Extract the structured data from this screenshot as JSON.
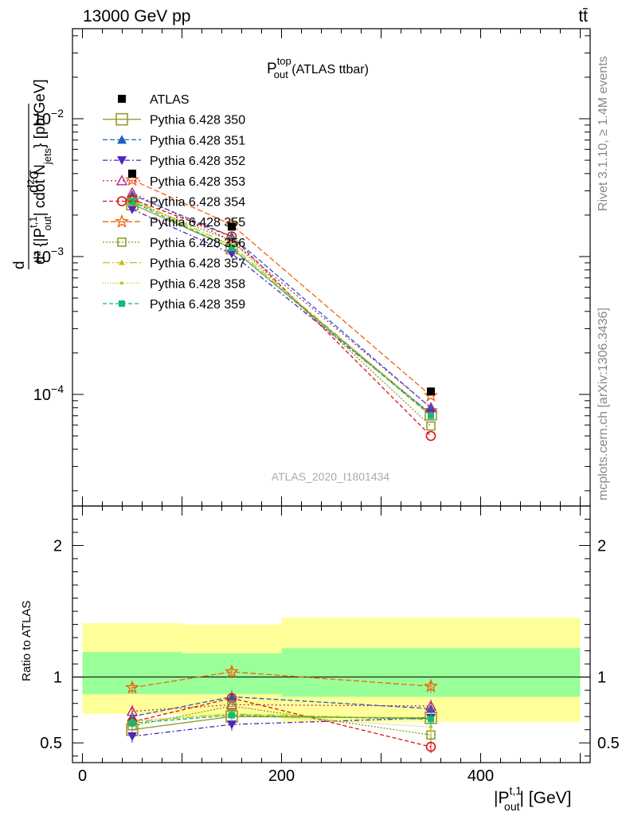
{
  "header": {
    "left": "13000 GeV pp",
    "right": "tt̄"
  },
  "title": {
    "main": "P",
    "sup": "top",
    "sub": "out",
    "rest": " (ATLAS ttbar)"
  },
  "side_labels": {
    "rivet": "Rivet 3.1.10, ≥ 1.4M events",
    "mcplots": "mcplots.cern.ch [arXiv:1306.3436]"
  },
  "watermark": "ATLAS_2020_I1801434",
  "axes": {
    "ylabel_top": "dσ / d²[|P_out^{t,1}| cdot N_jets] [pb/GeV]",
    "ylabel_ratio": "Ratio to ATLAS",
    "xlabel": "|P_out^{t,1}| [GeV]",
    "xlabel_main": "|P",
    "xlabel_sup": "t,1",
    "xlabel_sub": "out",
    "xlabel_rest": "| [GeV]",
    "ylabel_parts": {
      "d": "d",
      "num_top": "d²σ",
      "num_sup": "fid",
      "den": "d² {|P",
      "den_sup": "t,1",
      "den_sub": "out",
      "den_mid": "| cdot N",
      "den_sub2": "jets",
      "den_end": "} [pb/GeV]"
    }
  },
  "chart_data": {
    "type": "scatter",
    "x_bins": [
      [
        0,
        100
      ],
      [
        100,
        200
      ],
      [
        200,
        500
      ]
    ],
    "x": [
      50,
      150,
      350
    ],
    "xlim": [
      -10,
      510
    ],
    "ylim_top": [
      1.55e-05,
      0.045
    ],
    "y_scale_top": "log",
    "ylim_ratio": [
      0.35,
      2.3
    ],
    "x_ticks": [
      0,
      200,
      400
    ],
    "y_ticks_top": [
      "10^{-2}",
      "10^{-3}",
      "10^{-4}"
    ],
    "y_ticks_ratio": [
      "0.5",
      "1",
      "2"
    ],
    "reference_band": {
      "inner": [
        [
          0.87,
          1.19
        ],
        [
          0.87,
          1.18
        ],
        [
          0.85,
          1.22
        ]
      ],
      "outer": [
        [
          0.72,
          1.41
        ],
        [
          0.7,
          1.4
        ],
        [
          0.66,
          1.45
        ]
      ]
    },
    "data": {
      "name": "ATLAS",
      "values": [
        0.004,
        0.00165,
        0.000105
      ],
      "color": "#000000"
    },
    "series": [
      {
        "name": "Pythia 6.428 350",
        "values": [
          0.0024,
          0.00115,
          7.18e-05
        ],
        "ratio": [
          0.6,
          0.7,
          0.69
        ],
        "color": "#999933",
        "dash": "",
        "marker": "square-open"
      },
      {
        "name": "Pythia 6.428 351",
        "values": [
          0.0028,
          0.0014,
          8e-05
        ],
        "ratio": [
          0.7,
          0.85,
          0.76
        ],
        "color": "#1f5fbf",
        "dash": "6,3",
        "marker": "triangle-up"
      },
      {
        "name": "Pythia 6.428 352",
        "values": [
          0.0022,
          0.00105,
          7.25e-05
        ],
        "ratio": [
          0.55,
          0.64,
          0.69
        ],
        "color": "#5522bb",
        "dash": "6,3,2,3",
        "marker": "triangle-down"
      },
      {
        "name": "Pythia 6.428 353",
        "values": [
          0.0029,
          0.0013,
          8e-05
        ],
        "ratio": [
          0.74,
          0.79,
          0.78
        ],
        "color": "#bb2288",
        "dash": "2,3",
        "marker": "triangle-open"
      },
      {
        "name": "Pythia 6.428 354",
        "values": [
          0.0026,
          0.0014,
          5e-05
        ],
        "ratio": [
          0.66,
          0.84,
          0.47
        ],
        "color": "#dd1111",
        "dash": "5,3",
        "marker": "circle-open"
      },
      {
        "name": "Pythia 6.428 355",
        "values": [
          0.0036,
          0.0017,
          9.8e-05
        ],
        "ratio": [
          0.92,
          1.04,
          0.93
        ],
        "color": "#ee6611",
        "dash": "7,3",
        "marker": "star"
      },
      {
        "name": "Pythia 6.428 356",
        "values": [
          0.0025,
          0.0013,
          5.9e-05
        ],
        "ratio": [
          0.63,
          0.78,
          0.56
        ],
        "color": "#889922",
        "dash": "2,2",
        "marker": "square-open-small"
      },
      {
        "name": "Pythia 6.428 357",
        "values": [
          0.0026,
          0.0012,
          7.1e-05
        ],
        "ratio": [
          0.66,
          0.72,
          0.68
        ],
        "color": "#ccbb11",
        "dash": "9,3,2,3",
        "marker": "tri-small"
      },
      {
        "name": "Pythia 6.428 358",
        "values": [
          0.0026,
          0.00115,
          7e-05
        ],
        "ratio": [
          0.67,
          0.72,
          0.62
        ],
        "color": "#aacc11",
        "dash": "1,2",
        "marker": "dot"
      },
      {
        "name": "Pythia 6.428 359",
        "values": [
          0.0025,
          0.00115,
          7e-05
        ],
        "ratio": [
          0.65,
          0.71,
          0.68
        ],
        "color": "#11bb77",
        "dash": "5,3",
        "marker": "square-small"
      }
    ],
    "legend_position": "upper-left"
  }
}
